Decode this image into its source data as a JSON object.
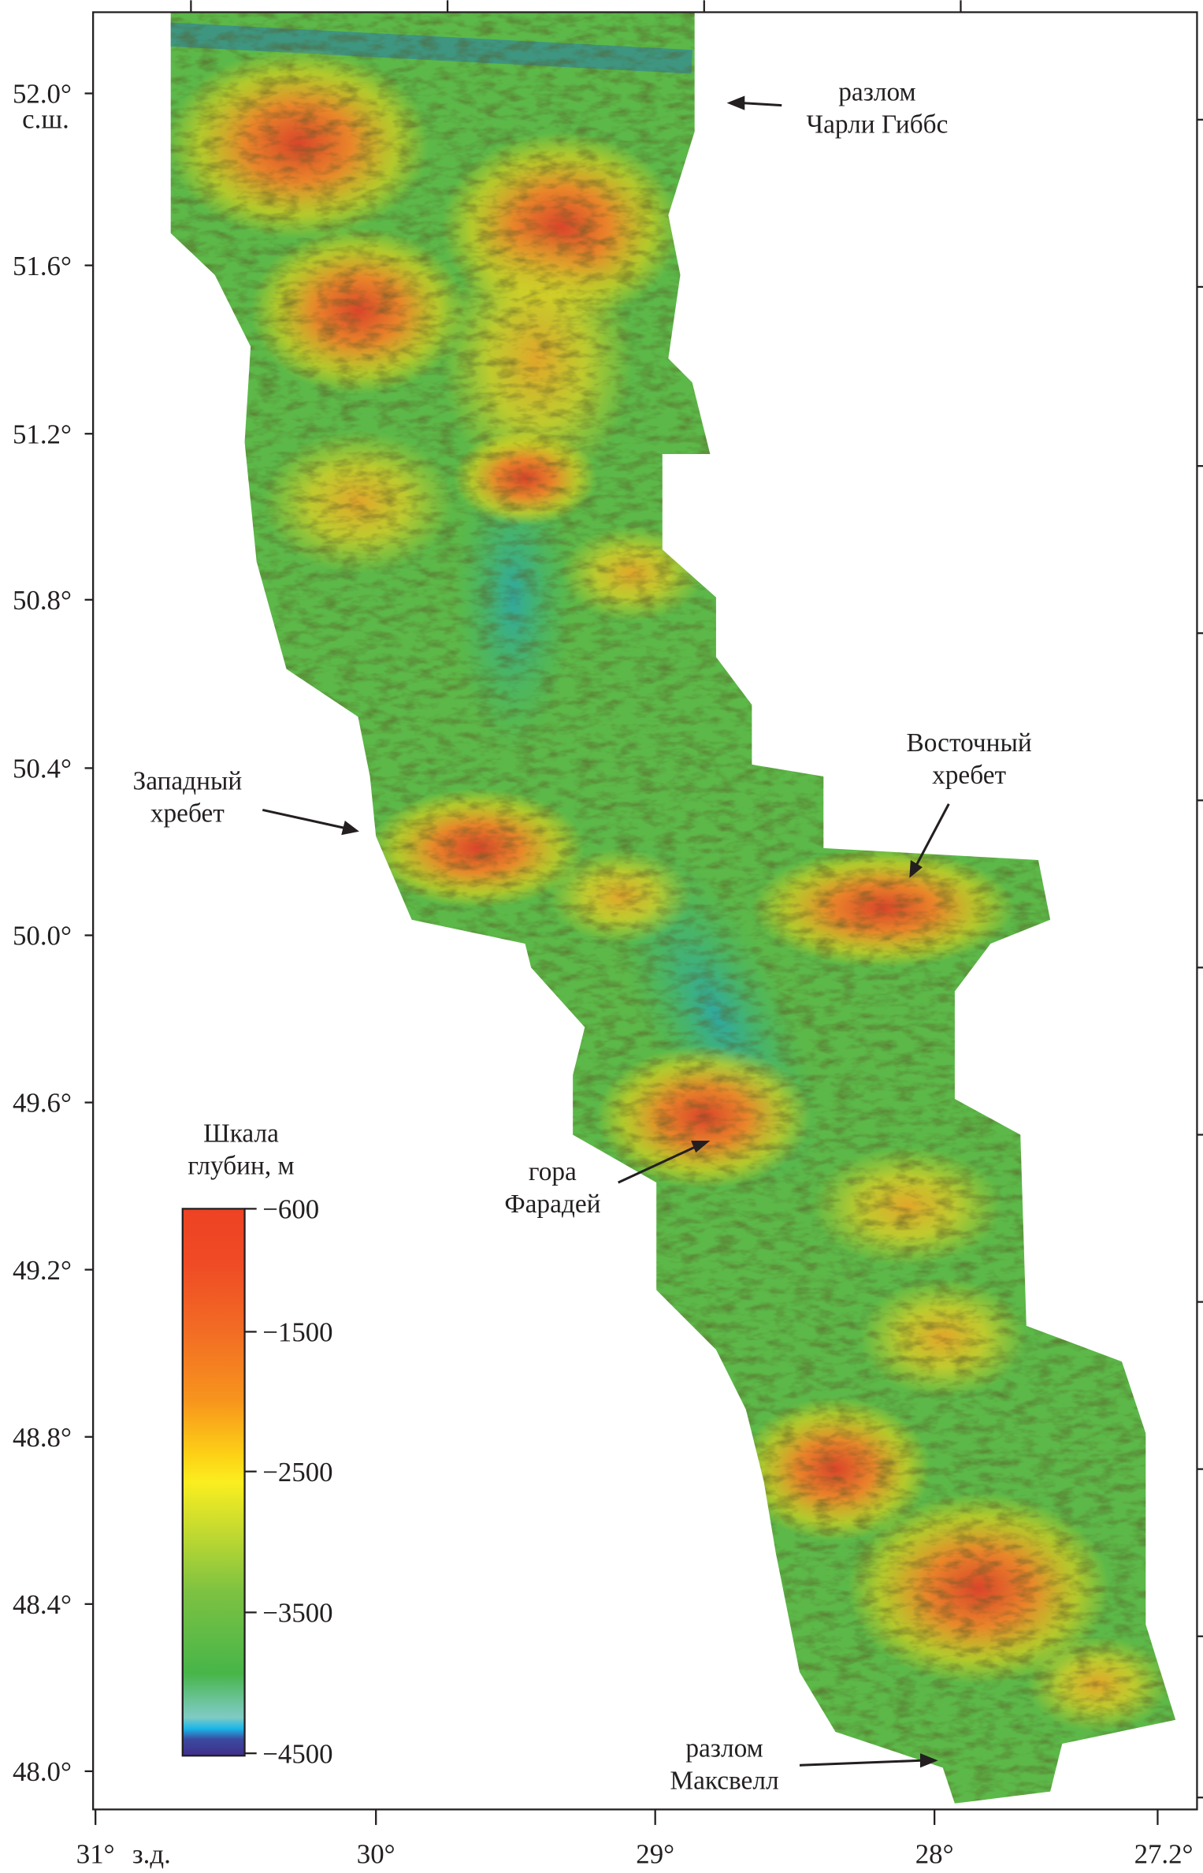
{
  "map": {
    "lat_ticks": [
      "52.0°",
      "51.6°",
      "51.2°",
      "50.8°",
      "50.4°",
      "50.0°",
      "49.6°",
      "49.2°",
      "48.8°",
      "48.4°",
      "48.0°"
    ],
    "lat_unit": "с.ш.",
    "lon_ticks": [
      "31°",
      "30°",
      "29°",
      "28°",
      "27.2°"
    ],
    "lon_unit": "з.д.",
    "annotations": {
      "charlie_gibbs": [
        "разлом",
        "Чарли Гиббс"
      ],
      "west_ridge": [
        "Западный",
        "хребет"
      ],
      "east_ridge": [
        "Восточный",
        "хребет"
      ],
      "faraday": [
        "гора",
        "Фарадей"
      ],
      "maxwell": [
        "разлом",
        "Максвелл"
      ]
    },
    "colors": {
      "deep": "#3f2e8c",
      "mid": "#47b549",
      "shallow": "#ee4224",
      "relief_green": "#5cb848",
      "relief_yellow": "#d8d020",
      "relief_red": "#d9452a"
    }
  },
  "legend": {
    "title": [
      "Шкала",
      "глубин, м"
    ],
    "ticks": [
      "−600",
      "−1500",
      "−2500",
      "−3500",
      "−4500"
    ],
    "range_m": [
      -4500,
      -600
    ]
  }
}
